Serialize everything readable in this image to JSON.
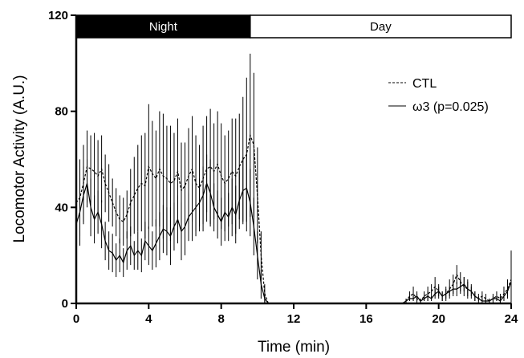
{
  "chart_data": {
    "type": "line",
    "xlabel": "Time (min)",
    "ylabel": "Locomotor Activity (A.U.)",
    "xlim": [
      0,
      24
    ],
    "ylim": [
      0,
      120
    ],
    "xticks": [
      0,
      4,
      8,
      12,
      16,
      20,
      24
    ],
    "yticks": [
      0,
      40,
      80,
      120
    ],
    "grid": false,
    "legend_position": "top-right",
    "bands": [
      {
        "label": "Night",
        "from": 0,
        "to": 9.6,
        "fill": "#000000",
        "text_color": "#ffffff"
      },
      {
        "label": "Day",
        "from": 9.6,
        "to": 24,
        "fill": "#ffffff",
        "text_color": "#000000"
      }
    ],
    "series": [
      {
        "name": "CTL",
        "style": "dashed",
        "x": [
          0.0,
          0.2,
          0.4,
          0.6,
          0.8,
          1.0,
          1.2,
          1.4,
          1.6,
          1.8,
          2.0,
          2.2,
          2.4,
          2.6,
          2.8,
          3.0,
          3.2,
          3.4,
          3.6,
          3.8,
          4.0,
          4.2,
          4.4,
          4.6,
          4.8,
          5.0,
          5.2,
          5.4,
          5.6,
          5.8,
          6.0,
          6.2,
          6.4,
          6.6,
          6.8,
          7.0,
          7.2,
          7.4,
          7.6,
          7.8,
          8.0,
          8.2,
          8.4,
          8.6,
          8.8,
          9.0,
          9.2,
          9.4,
          9.6,
          9.8,
          10.0,
          10.2,
          10.4,
          10.6,
          10.8,
          11.0,
          11.5,
          12.0,
          13.0,
          14.0,
          15.0,
          16.0,
          17.0,
          18.0,
          18.2,
          18.4,
          18.6,
          18.8,
          19.0,
          19.2,
          19.4,
          19.6,
          19.8,
          20.0,
          20.2,
          20.4,
          20.6,
          20.8,
          21.0,
          21.2,
          21.4,
          21.6,
          21.8,
          22.0,
          22.2,
          22.4,
          22.6,
          22.8,
          23.0,
          23.2,
          23.4,
          23.6,
          23.8,
          24.0
        ],
        "y": [
          42,
          44,
          50,
          57,
          56,
          55,
          53,
          56,
          50,
          46,
          42,
          38,
          35,
          34,
          37,
          42,
          45,
          48,
          50,
          49,
          57,
          54,
          52,
          56,
          53,
          52,
          50,
          51,
          55,
          47,
          49,
          53,
          56,
          50,
          48,
          52,
          56,
          57,
          55,
          58,
          53,
          50,
          52,
          55,
          53,
          57,
          60,
          62,
          70,
          66,
          45,
          20,
          4,
          0,
          0,
          0,
          0,
          0,
          0,
          0,
          0,
          0,
          0,
          0,
          1,
          3,
          4,
          2,
          1,
          3,
          4,
          5,
          7,
          5,
          3,
          4,
          6,
          8,
          12,
          9,
          7,
          6,
          5,
          3,
          2,
          3,
          2,
          1,
          2,
          3,
          2,
          4,
          6,
          10
        ],
        "err": [
          14,
          16,
          16,
          15,
          14,
          16,
          15,
          14,
          12,
          12,
          10,
          10,
          10,
          10,
          10,
          14,
          16,
          18,
          20,
          22,
          26,
          22,
          20,
          24,
          26,
          22,
          24,
          20,
          22,
          20,
          18,
          20,
          22,
          20,
          18,
          22,
          22,
          24,
          20,
          22,
          22,
          20,
          20,
          22,
          24,
          22,
          26,
          32,
          34,
          30,
          20,
          10,
          4,
          0,
          0,
          0,
          0,
          0,
          0,
          0,
          0,
          0,
          0,
          0,
          1,
          2,
          3,
          2,
          1,
          2,
          3,
          3,
          4,
          3,
          2,
          3,
          4,
          4,
          4,
          4,
          4,
          4,
          3,
          2,
          2,
          2,
          2,
          1,
          2,
          2,
          2,
          3,
          4,
          12
        ]
      },
      {
        "name": "ω3 (p=0.025)",
        "style": "solid",
        "x": [
          0.0,
          0.2,
          0.4,
          0.6,
          0.8,
          1.0,
          1.2,
          1.4,
          1.6,
          1.8,
          2.0,
          2.2,
          2.4,
          2.6,
          2.8,
          3.0,
          3.2,
          3.4,
          3.6,
          3.8,
          4.0,
          4.2,
          4.4,
          4.6,
          4.8,
          5.0,
          5.2,
          5.4,
          5.6,
          5.8,
          6.0,
          6.2,
          6.4,
          6.6,
          6.8,
          7.0,
          7.2,
          7.4,
          7.6,
          7.8,
          8.0,
          8.2,
          8.4,
          8.6,
          8.8,
          9.0,
          9.2,
          9.4,
          9.6,
          9.8,
          10.0,
          10.2,
          10.4,
          10.6,
          10.8,
          11.0,
          11.5,
          12.0,
          13.0,
          14.0,
          15.0,
          16.0,
          17.0,
          18.0,
          18.2,
          18.4,
          18.6,
          18.8,
          19.0,
          19.2,
          19.4,
          19.6,
          19.8,
          20.0,
          20.2,
          20.4,
          20.6,
          20.8,
          21.0,
          21.2,
          21.4,
          21.6,
          21.8,
          22.0,
          22.2,
          22.4,
          22.6,
          22.8,
          23.0,
          23.2,
          23.4,
          23.6,
          23.8,
          24.0
        ],
        "y": [
          33,
          38,
          45,
          50,
          40,
          35,
          38,
          33,
          26,
          22,
          21,
          18,
          20,
          17,
          22,
          24,
          20,
          22,
          20,
          26,
          24,
          22,
          25,
          28,
          31,
          30,
          28,
          32,
          35,
          30,
          32,
          36,
          38,
          40,
          42,
          45,
          50,
          46,
          40,
          37,
          34,
          38,
          36,
          40,
          37,
          43,
          47,
          48,
          42,
          32,
          20,
          8,
          2,
          0,
          0,
          0,
          0,
          0,
          0,
          0,
          0,
          0,
          0,
          0,
          1,
          2,
          2,
          3,
          1,
          2,
          3,
          2,
          4,
          5,
          3,
          4,
          5,
          6,
          6,
          7,
          8,
          6,
          5,
          3,
          2,
          1,
          1,
          1,
          2,
          2,
          1,
          3,
          5,
          9
        ],
        "err": [
          12,
          14,
          12,
          10,
          12,
          10,
          9,
          10,
          8,
          8,
          8,
          7,
          7,
          6,
          8,
          8,
          6,
          8,
          7,
          8,
          8,
          8,
          10,
          10,
          10,
          10,
          12,
          10,
          10,
          12,
          12,
          10,
          12,
          12,
          10,
          12,
          12,
          14,
          10,
          10,
          10,
          12,
          10,
          12,
          12,
          12,
          14,
          14,
          14,
          12,
          10,
          6,
          2,
          0,
          0,
          0,
          0,
          0,
          0,
          0,
          0,
          0,
          0,
          0,
          1,
          1,
          1,
          2,
          1,
          1,
          2,
          1,
          2,
          2,
          2,
          2,
          2,
          3,
          3,
          3,
          3,
          3,
          2,
          2,
          1,
          1,
          1,
          1,
          1,
          1,
          1,
          2,
          2,
          4
        ]
      }
    ]
  }
}
